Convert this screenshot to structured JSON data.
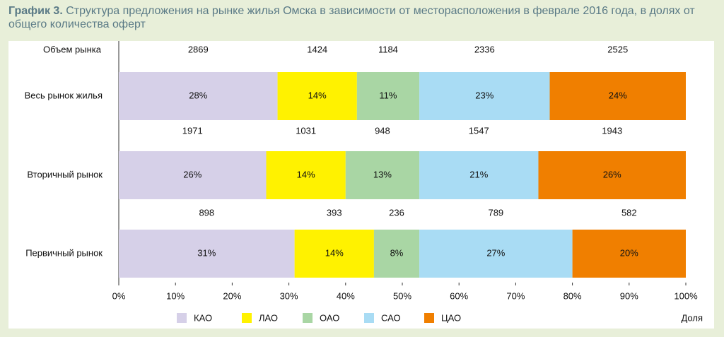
{
  "chart_data": {
    "type": "stacked-bar-horizontal",
    "title_number": "График 3.",
    "title": "Структура предложения на рынке жилья Омска в зависимости от месторасположения в феврале 2016 года, в долях от общего количества оферт",
    "volume_label": "Объем рынка",
    "categories": [
      "Весь рынок жилья",
      "Вторичный рынок",
      "Первичный рынок"
    ],
    "series": [
      {
        "name": "КАО",
        "color": "#d6d0e8",
        "values": [
          28,
          26,
          31
        ],
        "value_labels": [
          "28%",
          "26%",
          "31%"
        ],
        "volumes": [
          2869,
          1971,
          898
        ]
      },
      {
        "name": "ЛАО",
        "color": "#fff200",
        "values": [
          14,
          14,
          14
        ],
        "value_labels": [
          "14%",
          "14%",
          "14%"
        ],
        "volumes": [
          1424,
          1031,
          393
        ]
      },
      {
        "name": "ОАО",
        "color": "#a9d6a4",
        "values": [
          11,
          13,
          8
        ],
        "value_labels": [
          "11%",
          "13%",
          "8%"
        ],
        "volumes": [
          1184,
          948,
          236
        ]
      },
      {
        "name": "САО",
        "color": "#a9dcf4",
        "values": [
          23,
          21,
          27
        ],
        "value_labels": [
          "23%",
          "21%",
          "27%"
        ],
        "volumes": [
          2336,
          1547,
          789
        ]
      },
      {
        "name": "ЦАО",
        "color": "#f07f00",
        "values": [
          24,
          26,
          20
        ],
        "value_labels": [
          "24%",
          "26%",
          "20%"
        ],
        "volumes": [
          2525,
          1943,
          582
        ]
      }
    ],
    "xlim": [
      0,
      100
    ],
    "xticks": [
      {
        "value": 0,
        "label": "0%"
      },
      {
        "value": 10,
        "label": "10%"
      },
      {
        "value": 20,
        "label": "20%"
      },
      {
        "value": 30,
        "label": "30%"
      },
      {
        "value": 40,
        "label": "40%"
      },
      {
        "value": 50,
        "label": "50%"
      },
      {
        "value": 60,
        "label": "60%"
      },
      {
        "value": 70,
        "label": "70%"
      },
      {
        "value": 80,
        "label": "80%"
      },
      {
        "value": 90,
        "label": "90%"
      },
      {
        "value": 100,
        "label": "100%"
      }
    ],
    "xlabel": "Доля"
  }
}
